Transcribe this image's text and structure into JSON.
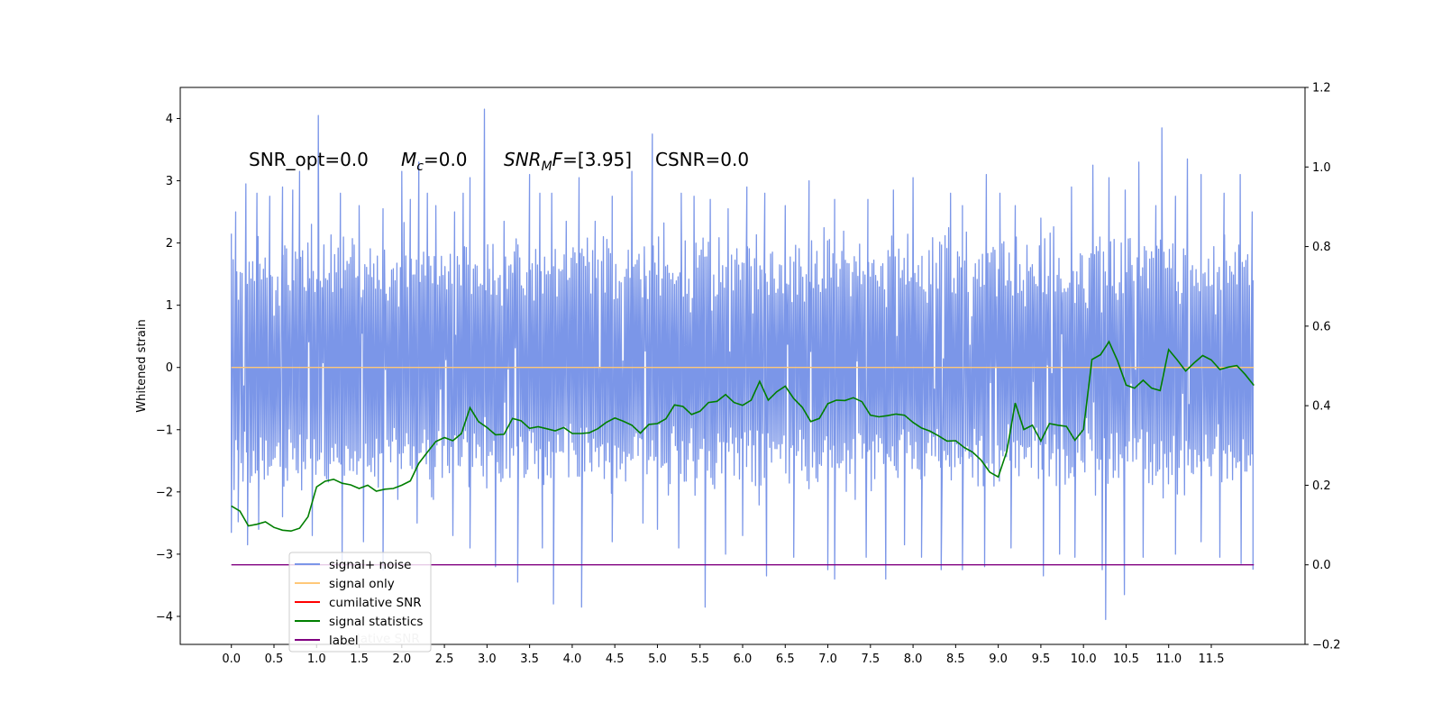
{
  "chart_data": {
    "type": "line",
    "title": "",
    "xlabel": "",
    "ylabel": "Whitened strain",
    "y2label": "",
    "xlim": [
      -0.6,
      12.6
    ],
    "ylim": [
      -4.45,
      4.5
    ],
    "y2lim": [
      -0.2,
      1.2
    ],
    "x_ticks": [
      "0.0",
      "0.5",
      "1.0",
      "1.5",
      "2.0",
      "2.5",
      "3.0",
      "3.5",
      "4.0",
      "4.5",
      "5.0",
      "5.5",
      "6.0",
      "6.5",
      "7.0",
      "7.5",
      "8.0",
      "8.5",
      "9.0",
      "9.5",
      "10.0",
      "10.5",
      "11.0",
      "11.5"
    ],
    "y_ticks": [
      "4",
      "3",
      "2",
      "1",
      "0",
      "−1",
      "−2",
      "−3",
      "−4"
    ],
    "y2_ticks": [
      "1.2",
      "1.0",
      "0.8",
      "0.6",
      "0.4",
      "0.2",
      "0.0",
      "−0.2"
    ],
    "annotations": [
      {
        "text": "SNR_opt=0.0"
      },
      {
        "prefix": "M",
        "sub": "c",
        "suffix": "=0.0"
      },
      {
        "prefix": "SNR",
        "sub": "M",
        "mid": "F",
        "suffix": "=[3.95]"
      },
      {
        "text": "CSNR=0.0"
      }
    ],
    "legend": {
      "position": "lower-left",
      "entries": [
        {
          "label": "signal+ noise",
          "color": "#7b96e8"
        },
        {
          "label": "signal only",
          "color": "#ffc878"
        },
        {
          "label": "cumilative SNR",
          "color": "#ff0000"
        },
        {
          "label": "signal statistics",
          "color": "#007f00"
        },
        {
          "label": "label",
          "color": "#800080"
        }
      ],
      "occluded_text": "lative SNR"
    },
    "series": [
      {
        "name": "signal+ noise",
        "axis": "left",
        "color": "#7b96e8",
        "style": "noise",
        "x_range": [
          0.0,
          12.0
        ],
        "band_upper": 2.0,
        "band_lower": -1.9,
        "spikes_up": [
          [
            0.0,
            2.15
          ],
          [
            0.05,
            2.5
          ],
          [
            0.17,
            2.95
          ],
          [
            0.3,
            2.8
          ],
          [
            0.45,
            2.75
          ],
          [
            0.6,
            2.9
          ],
          [
            0.72,
            2.85
          ],
          [
            0.8,
            3.15
          ],
          [
            0.94,
            2.3
          ],
          [
            1.02,
            4.05
          ],
          [
            1.28,
            2.8
          ],
          [
            1.5,
            2.6
          ],
          [
            1.78,
            2.55
          ],
          [
            2.0,
            3.15
          ],
          [
            2.1,
            2.7
          ],
          [
            2.2,
            3.3
          ],
          [
            2.3,
            2.8
          ],
          [
            2.4,
            2.6
          ],
          [
            2.62,
            2.5
          ],
          [
            2.72,
            2.8
          ],
          [
            2.8,
            3.05
          ],
          [
            2.97,
            4.15
          ],
          [
            3.2,
            2.35
          ],
          [
            3.5,
            3.1
          ],
          [
            3.62,
            2.8
          ],
          [
            3.76,
            2.8
          ],
          [
            3.93,
            2.35
          ],
          [
            4.08,
            3.05
          ],
          [
            4.27,
            2.35
          ],
          [
            4.47,
            2.75
          ],
          [
            4.7,
            3.15
          ],
          [
            4.94,
            3.75
          ],
          [
            5.28,
            2.8
          ],
          [
            5.43,
            2.75
          ],
          [
            5.62,
            2.7
          ],
          [
            5.83,
            2.55
          ],
          [
            6.05,
            2.9
          ],
          [
            6.26,
            2.8
          ],
          [
            6.5,
            2.6
          ],
          [
            6.78,
            3.0
          ],
          [
            7.08,
            2.7
          ],
          [
            7.47,
            2.7
          ],
          [
            7.77,
            2.85
          ],
          [
            8.0,
            3.05
          ],
          [
            8.44,
            2.8
          ],
          [
            8.58,
            2.6
          ],
          [
            8.86,
            3.1
          ],
          [
            9.02,
            2.8
          ],
          [
            9.2,
            2.6
          ],
          [
            9.5,
            2.4
          ],
          [
            9.86,
            2.9
          ],
          [
            10.11,
            3.25
          ],
          [
            10.3,
            3.05
          ],
          [
            10.49,
            2.85
          ],
          [
            10.65,
            3.3
          ],
          [
            10.85,
            2.6
          ],
          [
            10.92,
            3.85
          ],
          [
            11.08,
            2.75
          ],
          [
            11.22,
            3.35
          ],
          [
            11.38,
            3.1
          ],
          [
            11.65,
            2.8
          ],
          [
            11.84,
            3.1
          ],
          [
            11.98,
            2.5
          ]
        ],
        "spikes_down": [
          [
            0.0,
            -2.65
          ],
          [
            0.08,
            -2.48
          ],
          [
            0.19,
            -2.85
          ],
          [
            0.32,
            -2.6
          ],
          [
            0.6,
            -2.4
          ],
          [
            0.95,
            -2.7
          ],
          [
            1.3,
            -3.1
          ],
          [
            1.55,
            -2.8
          ],
          [
            1.78,
            -3.25
          ],
          [
            2.18,
            -2.5
          ],
          [
            2.6,
            -2.7
          ],
          [
            2.8,
            -2.9
          ],
          [
            3.1,
            -3.2
          ],
          [
            3.36,
            -3.45
          ],
          [
            3.65,
            -2.9
          ],
          [
            3.78,
            -3.8
          ],
          [
            4.11,
            -3.85
          ],
          [
            4.47,
            -2.8
          ],
          [
            4.83,
            -2.5
          ],
          [
            5.0,
            -2.6
          ],
          [
            5.25,
            -2.9
          ],
          [
            5.56,
            -3.85
          ],
          [
            5.8,
            -3.0
          ],
          [
            6.0,
            -2.7
          ],
          [
            6.28,
            -3.35
          ],
          [
            6.6,
            -3.05
          ],
          [
            7.0,
            -3.25
          ],
          [
            7.08,
            -3.4
          ],
          [
            7.45,
            -3.05
          ],
          [
            7.68,
            -3.4
          ],
          [
            7.9,
            -2.85
          ],
          [
            8.1,
            -3.05
          ],
          [
            8.33,
            -3.25
          ],
          [
            8.58,
            -3.25
          ],
          [
            8.84,
            -3.2
          ],
          [
            9.15,
            -2.9
          ],
          [
            9.53,
            -3.35
          ],
          [
            9.72,
            -3.0
          ],
          [
            9.9,
            -3.05
          ],
          [
            10.22,
            -3.25
          ],
          [
            10.26,
            -4.05
          ],
          [
            10.48,
            -3.65
          ],
          [
            10.7,
            -3.05
          ],
          [
            11.08,
            -3.0
          ],
          [
            11.38,
            -2.8
          ],
          [
            11.6,
            -3.05
          ],
          [
            11.85,
            -3.15
          ],
          [
            11.99,
            -3.25
          ]
        ]
      },
      {
        "name": "signal only",
        "axis": "left",
        "color": "#ffc878",
        "x": [
          0.0,
          12.0
        ],
        "y": [
          0.0,
          0.0
        ]
      },
      {
        "name": "signal statistics",
        "axis": "right",
        "color": "#007f00",
        "x": [
          0.0,
          0.1,
          0.2,
          0.3,
          0.4,
          0.5,
          0.6,
          0.7,
          0.8,
          0.9,
          1.0,
          1.1,
          1.2,
          1.3,
          1.4,
          1.5,
          1.6,
          1.7,
          1.8,
          1.9,
          2.0,
          2.1,
          2.2,
          2.3,
          2.4,
          2.5,
          2.6,
          2.7,
          2.8,
          2.9,
          3.0,
          3.1,
          3.2,
          3.3,
          3.4,
          3.5,
          3.6,
          3.7,
          3.8,
          3.9,
          4.0,
          4.1,
          4.2,
          4.3,
          4.4,
          4.5,
          4.6,
          4.7,
          4.8,
          4.9,
          5.0,
          5.1,
          5.2,
          5.3,
          5.4,
          5.5,
          5.6,
          5.7,
          5.8,
          5.9,
          6.0,
          6.1,
          6.2,
          6.3,
          6.4,
          6.5,
          6.6,
          6.7,
          6.8,
          6.9,
          7.0,
          7.1,
          7.2,
          7.3,
          7.4,
          7.5,
          7.6,
          7.7,
          7.8,
          7.9,
          8.0,
          8.1,
          8.2,
          8.3,
          8.4,
          8.5,
          8.6,
          8.7,
          8.8,
          8.9,
          9.0,
          9.1,
          9.2,
          9.3,
          9.4,
          9.5,
          9.6,
          9.7,
          9.8,
          9.9,
          10.0,
          10.1,
          10.2,
          10.3,
          10.4,
          10.5,
          10.6,
          10.7,
          10.8,
          10.9,
          11.0,
          11.1,
          11.2,
          11.3,
          11.4,
          11.5,
          11.6,
          11.7,
          11.8,
          11.9,
          12.0
        ],
        "y": [
          0.148,
          0.135,
          0.098,
          0.102,
          0.108,
          0.094,
          0.087,
          0.085,
          0.092,
          0.121,
          0.196,
          0.21,
          0.215,
          0.205,
          0.201,
          0.192,
          0.2,
          0.185,
          0.19,
          0.192,
          0.2,
          0.211,
          0.255,
          0.283,
          0.31,
          0.32,
          0.312,
          0.33,
          0.395,
          0.36,
          0.345,
          0.327,
          0.328,
          0.368,
          0.362,
          0.343,
          0.347,
          0.342,
          0.337,
          0.345,
          0.33,
          0.33,
          0.332,
          0.342,
          0.358,
          0.369,
          0.361,
          0.351,
          0.331,
          0.353,
          0.355,
          0.367,
          0.402,
          0.398,
          0.378,
          0.386,
          0.408,
          0.411,
          0.428,
          0.408,
          0.401,
          0.414,
          0.461,
          0.414,
          0.435,
          0.449,
          0.418,
          0.396,
          0.36,
          0.368,
          0.405,
          0.414,
          0.413,
          0.42,
          0.41,
          0.376,
          0.372,
          0.375,
          0.379,
          0.376,
          0.358,
          0.344,
          0.336,
          0.324,
          0.311,
          0.312,
          0.295,
          0.283,
          0.263,
          0.233,
          0.221,
          0.285,
          0.407,
          0.34,
          0.351,
          0.311,
          0.355,
          0.351,
          0.348,
          0.313,
          0.34,
          0.516,
          0.528,
          0.561,
          0.513,
          0.452,
          0.444,
          0.464,
          0.444,
          0.438,
          0.541,
          0.515,
          0.487,
          0.508,
          0.526,
          0.515,
          0.491,
          0.497,
          0.501,
          0.478,
          0.451
        ]
      },
      {
        "name": "label",
        "axis": "right",
        "color": "#800080",
        "x": [
          0.0,
          12.0
        ],
        "y": [
          0.0,
          0.0
        ]
      }
    ]
  }
}
